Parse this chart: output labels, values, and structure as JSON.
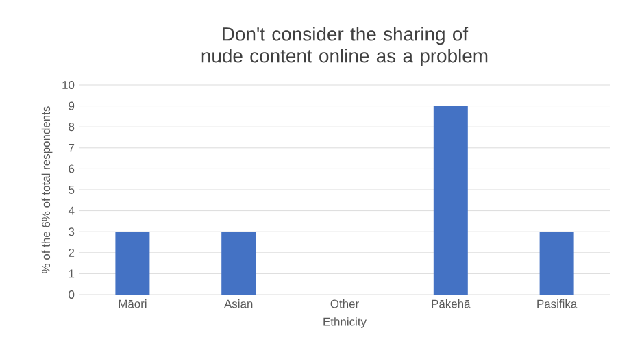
{
  "chart_data": {
    "type": "bar",
    "title": "Don't consider the sharing of nude content online as a problem",
    "xlabel": "Ethnicity",
    "ylabel": "% of the 6% of total respondents",
    "categories": [
      "Māori",
      "Asian",
      "Other",
      "Pākehā",
      "Pasifika"
    ],
    "values": [
      3,
      3,
      0,
      9,
      3
    ],
    "color": "#4472c4",
    "ylim": [
      0,
      10
    ],
    "yticks": [
      0,
      1,
      2,
      3,
      4,
      5,
      6,
      7,
      8,
      9,
      10
    ],
    "grid": "y"
  }
}
